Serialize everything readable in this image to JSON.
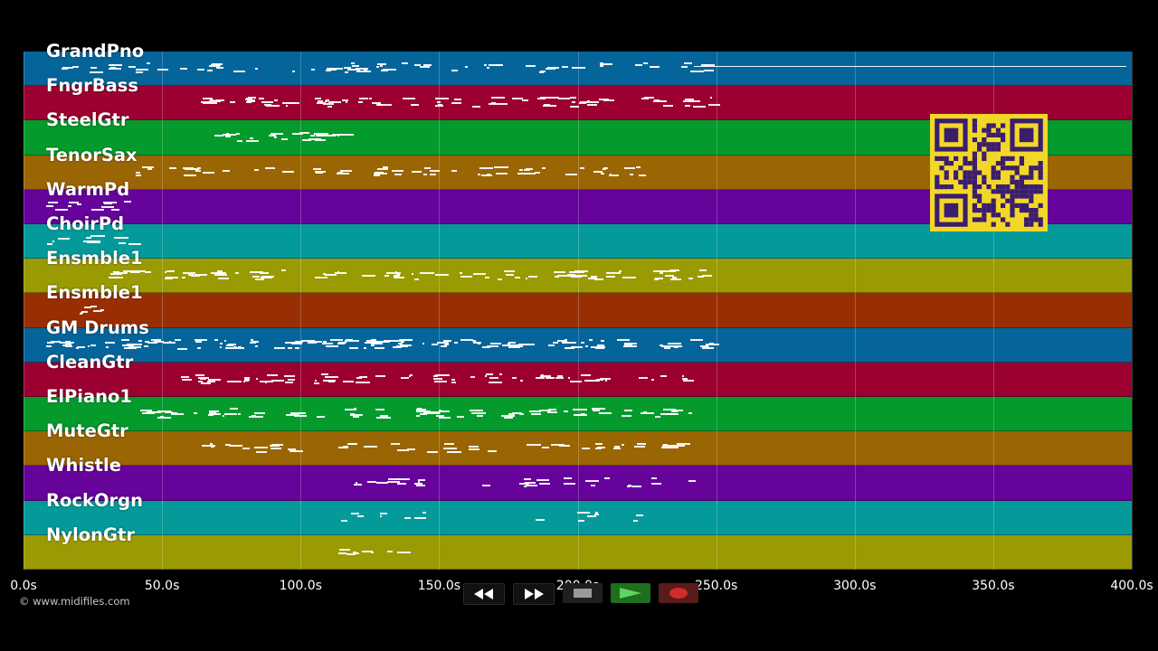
{
  "tracks": [
    {
      "name": "GrandPno",
      "color": "#05659a"
    },
    {
      "name": "FngrBass",
      "color": "#9b0030"
    },
    {
      "name": "SteelGtr",
      "color": "#049a2c"
    },
    {
      "name": "TenorSax",
      "color": "#9a6503"
    },
    {
      "name": "WarmPd",
      "color": "#65039a"
    },
    {
      "name": "ChoirPd",
      "color": "#049a9a"
    },
    {
      "name": "Ensmble1",
      "color": "#9a9a03"
    },
    {
      "name": "Ensmble1",
      "color": "#9a2e03"
    },
    {
      "name": "GM Drums",
      "color": "#05659a"
    },
    {
      "name": "CleanGtr",
      "color": "#9b0030"
    },
    {
      "name": "ElPiano1",
      "color": "#049a2c"
    },
    {
      "name": "MuteGtr",
      "color": "#9a6503"
    },
    {
      "name": "Whistle",
      "color": "#65039a"
    },
    {
      "name": "RockOrgn",
      "color": "#049a9a"
    },
    {
      "name": "NylonGtr",
      "color": "#9a9a03"
    }
  ],
  "timeline": {
    "max_seconds": 400,
    "ticks": [
      "0.0s",
      "50.0s",
      "100.0s",
      "150.0s",
      "200.0s",
      "250.0s",
      "300.0s",
      "350.0s",
      "400.0s"
    ]
  },
  "copyright": "© www.midifiles.com",
  "transport": {
    "rewind_icon": "rewind-icon",
    "fast_forward_icon": "fast-forward-icon",
    "stop_icon": "stop-icon",
    "play_icon": "play-icon",
    "record_icon": "record-icon"
  }
}
